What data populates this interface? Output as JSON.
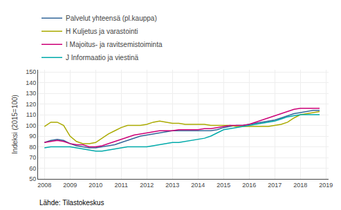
{
  "chart_data": {
    "type": "line",
    "ylabel": "Indeksi (2015=100)",
    "annotations": [
      "Lähde: Tilastokeskus"
    ],
    "x": [
      2008.0,
      2008.25,
      2008.5,
      2008.75,
      2009.0,
      2009.25,
      2009.5,
      2009.75,
      2010.0,
      2010.25,
      2010.5,
      2010.75,
      2011.0,
      2011.25,
      2011.5,
      2011.75,
      2012.0,
      2012.25,
      2012.5,
      2012.75,
      2013.0,
      2013.25,
      2013.5,
      2013.75,
      2014.0,
      2014.25,
      2014.5,
      2014.75,
      2015.0,
      2015.25,
      2015.5,
      2015.75,
      2016.0,
      2016.25,
      2016.5,
      2016.75,
      2017.0,
      2017.25,
      2017.5,
      2017.75,
      2018.0,
      2018.25,
      2018.5,
      2018.75
    ],
    "series": [
      {
        "name": "Palvelut yhteensä (pl.kauppa)",
        "color": "#336699",
        "values": [
          84,
          86,
          87,
          86,
          83,
          81,
          80,
          79,
          79,
          80,
          81,
          82,
          84,
          86,
          88,
          90,
          91,
          92,
          93,
          94,
          95,
          95,
          95,
          95,
          95,
          95,
          95,
          96,
          98,
          99,
          100,
          100,
          101,
          102,
          103,
          104,
          105,
          107,
          109,
          111,
          112,
          113,
          114,
          114
        ]
      },
      {
        "name": "H Kuljetus ja varastointi",
        "color": "#aaaa00",
        "values": [
          99,
          103,
          103,
          100,
          90,
          85,
          83,
          83,
          84,
          88,
          92,
          95,
          98,
          100,
          100,
          100,
          101,
          103,
          104,
          103,
          102,
          102,
          101,
          101,
          101,
          101,
          100,
          100,
          100,
          100,
          99,
          99,
          99,
          99,
          99,
          99,
          100,
          101,
          103,
          107,
          110,
          111,
          112,
          113
        ]
      },
      {
        "name": "I Majoitus- ja ravitsemistoiminta",
        "color": "#cc0077",
        "values": [
          84,
          85,
          86,
          85,
          83,
          82,
          82,
          80,
          80,
          81,
          83,
          85,
          87,
          89,
          91,
          92,
          93,
          94,
          95,
          95,
          95,
          96,
          96,
          96,
          96,
          97,
          97,
          98,
          99,
          100,
          100,
          100,
          101,
          103,
          105,
          107,
          109,
          111,
          113,
          115,
          116,
          116,
          116,
          116
        ]
      },
      {
        "name": "J Informaatio ja viestinä",
        "color": "#00aaaa",
        "values": [
          79,
          80,
          80,
          80,
          80,
          79,
          78,
          77,
          76,
          76,
          77,
          78,
          79,
          80,
          80,
          80,
          80,
          81,
          82,
          83,
          84,
          84,
          85,
          86,
          87,
          88,
          90,
          93,
          96,
          97,
          98,
          99,
          100,
          101,
          102,
          103,
          104,
          106,
          108,
          109,
          110,
          110,
          110,
          110
        ]
      }
    ],
    "xlim": [
      2007.75,
      2019.1
    ],
    "xticks": [
      2008,
      2009,
      2010,
      2011,
      2012,
      2013,
      2014,
      2015,
      2016,
      2017,
      2018,
      2019
    ],
    "ylim": [
      50,
      152
    ],
    "yticks": [
      50,
      60,
      70,
      80,
      90,
      100,
      110,
      120,
      130,
      140,
      150
    ],
    "grid": true,
    "legend": "upper left"
  }
}
